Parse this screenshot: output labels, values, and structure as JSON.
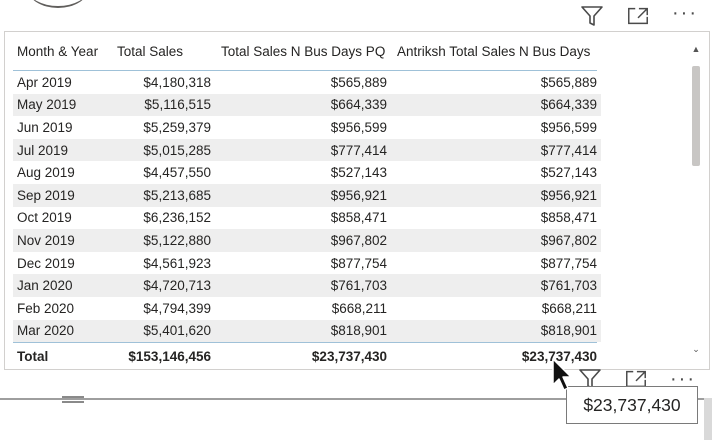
{
  "table": {
    "headers": [
      "Month & Year",
      "Total Sales",
      "Total Sales N Bus Days PQ",
      "Antriksh Total Sales N Bus Days"
    ],
    "rows": [
      [
        "Apr 2019",
        "$4,180,318",
        "$565,889",
        "$565,889"
      ],
      [
        "May 2019",
        "$5,116,515",
        "$664,339",
        "$664,339"
      ],
      [
        "Jun 2019",
        "$5,259,379",
        "$956,599",
        "$956,599"
      ],
      [
        "Jul 2019",
        "$5,015,285",
        "$777,414",
        "$777,414"
      ],
      [
        "Aug 2019",
        "$4,457,550",
        "$527,143",
        "$527,143"
      ],
      [
        "Sep 2019",
        "$5,213,685",
        "$956,921",
        "$956,921"
      ],
      [
        "Oct 2019",
        "$6,236,152",
        "$858,471",
        "$858,471"
      ],
      [
        "Nov 2019",
        "$5,122,880",
        "$967,802",
        "$967,802"
      ],
      [
        "Dec 2019",
        "$4,561,923",
        "$877,754",
        "$877,754"
      ],
      [
        "Jan 2020",
        "$4,720,713",
        "$761,703",
        "$761,703"
      ],
      [
        "Feb 2020",
        "$4,794,399",
        "$668,211",
        "$668,211"
      ],
      [
        "Mar 2020",
        "$5,401,620",
        "$818,901",
        "$818,901"
      ]
    ],
    "total": [
      "Total",
      "$153,146,456",
      "$23,737,430",
      "$23,737,430"
    ]
  },
  "tooltip": {
    "value": "$23,737,430"
  },
  "header_icons": {
    "filter": "filter-icon",
    "focus": "focus-mode-icon",
    "more": "···"
  },
  "colors": {
    "band": "#eeeeee",
    "grid_line": "#9fc1d8",
    "border": "#d2d0ce"
  }
}
